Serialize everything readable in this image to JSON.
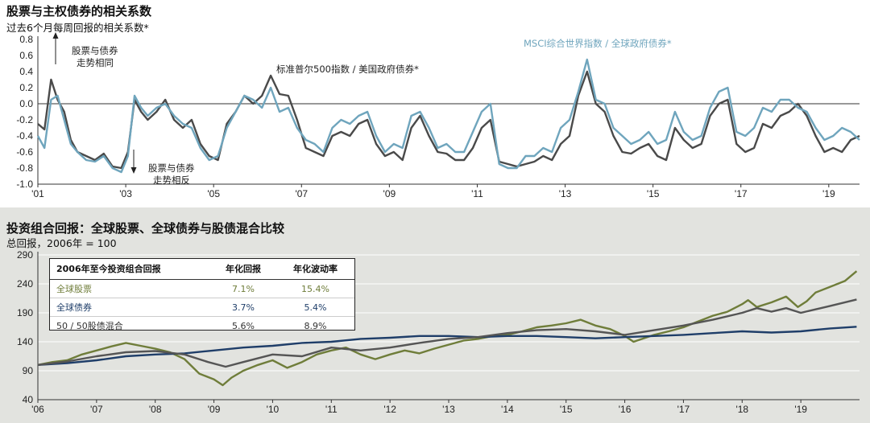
{
  "top": {
    "title": "股票与主权债券的相关系数",
    "subtitle": "过去6个月每周回报的相关系数*",
    "annotations": {
      "up_line1": "股票与债券",
      "up_line2": "走势相同",
      "down_line1": "股票与债券",
      "down_line2": "走势相反",
      "series1_label": "标准普尔500指数 / 美国政府债券*",
      "series2_label": "MSCI综合世界指数 / 全球政府债券*"
    }
  },
  "bottom": {
    "title": "投资组合回报：全球股票、全球债券与股债混合比较",
    "subtitle": "总回报，2006年 = 100",
    "table": {
      "headers": [
        "2006年至今投资组合回报",
        "年化回报",
        "年化波动率"
      ],
      "rows": [
        {
          "label": "全球股票",
          "return": "7.1%",
          "vol": "15.4%",
          "color": "#6f7d3a"
        },
        {
          "label": "全球债券",
          "return": "3.7%",
          "vol": "5.4%",
          "color": "#1f3e69"
        },
        {
          "label": "50 / 50股债混合",
          "return": "5.6%",
          "vol": "8.9%",
          "color": "#333333"
        }
      ]
    }
  },
  "chart_data": [
    {
      "type": "line",
      "title": "股票与主权债券的相关系数",
      "subtitle": "过去6个月每周回报的相关系数*",
      "ylim": [
        -1.0,
        0.8
      ],
      "xlim": [
        2001,
        2019.7
      ],
      "yticks": [
        -1.0,
        -0.8,
        -0.6,
        -0.4,
        -0.2,
        0.0,
        0.2,
        0.4,
        0.6,
        0.8
      ],
      "ytick_labels": [
        "-1.0",
        "-0.8",
        "-0.6",
        "-0.4",
        "-0.2",
        "0.0",
        "0.2",
        "0.4",
        "0.6",
        "0.8"
      ],
      "xticks": [
        2001,
        2003,
        2005,
        2007,
        2009,
        2011,
        2013,
        2015,
        2017,
        2019
      ],
      "xtick_labels": [
        "'01",
        "'03",
        "'05",
        "'07",
        "'09",
        "'11",
        "'13",
        "'15",
        "'17",
        "'19"
      ],
      "colors": [
        "#4a4a4a",
        "#6fa5bd"
      ],
      "series": [
        {
          "name": "标准普尔500指数 / 美国政府债券*",
          "x": [
            2001.0,
            2001.15,
            2001.3,
            2001.45,
            2001.6,
            2001.75,
            2001.9,
            2002.1,
            2002.3,
            2002.5,
            2002.7,
            2002.9,
            2003.05,
            2003.2,
            2003.35,
            2003.5,
            2003.7,
            2003.9,
            2004.1,
            2004.3,
            2004.5,
            2004.7,
            2004.9,
            2005.1,
            2005.3,
            2005.5,
            2005.7,
            2005.9,
            2006.1,
            2006.3,
            2006.5,
            2006.7,
            2006.9,
            2007.1,
            2007.3,
            2007.5,
            2007.7,
            2007.9,
            2008.1,
            2008.3,
            2008.5,
            2008.7,
            2008.9,
            2009.1,
            2009.3,
            2009.5,
            2009.7,
            2009.9,
            2010.1,
            2010.3,
            2010.5,
            2010.7,
            2010.9,
            2011.1,
            2011.3,
            2011.5,
            2011.7,
            2011.9,
            2012.1,
            2012.3,
            2012.5,
            2012.7,
            2012.9,
            2013.1,
            2013.3,
            2013.5,
            2013.7,
            2013.9,
            2014.1,
            2014.3,
            2014.5,
            2014.7,
            2014.9,
            2015.1,
            2015.3,
            2015.5,
            2015.7,
            2015.9,
            2016.1,
            2016.3,
            2016.5,
            2016.7,
            2016.9,
            2017.1,
            2017.3,
            2017.5,
            2017.7,
            2017.9,
            2018.1,
            2018.3,
            2018.5,
            2018.7,
            2018.9,
            2019.1,
            2019.3,
            2019.5,
            2019.7
          ],
          "y": [
            -0.25,
            -0.32,
            0.3,
            0.05,
            -0.1,
            -0.45,
            -0.6,
            -0.65,
            -0.7,
            -0.62,
            -0.78,
            -0.8,
            -0.6,
            0.05,
            -0.1,
            -0.2,
            -0.1,
            0.05,
            -0.2,
            -0.3,
            -0.2,
            -0.5,
            -0.65,
            -0.7,
            -0.25,
            -0.1,
            0.1,
            0.0,
            0.1,
            0.35,
            0.12,
            0.1,
            -0.2,
            -0.55,
            -0.6,
            -0.65,
            -0.4,
            -0.35,
            -0.4,
            -0.25,
            -0.2,
            -0.5,
            -0.65,
            -0.6,
            -0.7,
            -0.3,
            -0.15,
            -0.4,
            -0.6,
            -0.62,
            -0.7,
            -0.7,
            -0.55,
            -0.3,
            -0.2,
            -0.72,
            -0.75,
            -0.78,
            -0.75,
            -0.72,
            -0.65,
            -0.7,
            -0.5,
            -0.4,
            0.1,
            0.4,
            0.0,
            -0.1,
            -0.4,
            -0.6,
            -0.62,
            -0.55,
            -0.5,
            -0.65,
            -0.7,
            -0.3,
            -0.45,
            -0.55,
            -0.5,
            -0.15,
            0.0,
            0.05,
            -0.5,
            -0.6,
            -0.55,
            -0.25,
            -0.3,
            -0.15,
            -0.1,
            0.0,
            -0.15,
            -0.4,
            -0.6,
            -0.55,
            -0.6,
            -0.45,
            -0.4
          ]
        },
        {
          "name": "MSCI综合世界指数 / 全球政府债券*",
          "x": [
            2001.0,
            2001.15,
            2001.3,
            2001.45,
            2001.6,
            2001.75,
            2001.9,
            2002.1,
            2002.3,
            2002.5,
            2002.7,
            2002.9,
            2003.05,
            2003.2,
            2003.35,
            2003.5,
            2003.7,
            2003.9,
            2004.1,
            2004.3,
            2004.5,
            2004.7,
            2004.9,
            2005.1,
            2005.3,
            2005.5,
            2005.7,
            2005.9,
            2006.1,
            2006.3,
            2006.5,
            2006.7,
            2006.9,
            2007.1,
            2007.3,
            2007.5,
            2007.7,
            2007.9,
            2008.1,
            2008.3,
            2008.5,
            2008.7,
            2008.9,
            2009.1,
            2009.3,
            2009.5,
            2009.7,
            2009.9,
            2010.1,
            2010.3,
            2010.5,
            2010.7,
            2010.9,
            2011.1,
            2011.3,
            2011.5,
            2011.7,
            2011.9,
            2012.1,
            2012.3,
            2012.5,
            2012.7,
            2012.9,
            2013.1,
            2013.3,
            2013.5,
            2013.7,
            2013.9,
            2014.1,
            2014.3,
            2014.5,
            2014.7,
            2014.9,
            2015.1,
            2015.3,
            2015.5,
            2015.7,
            2015.9,
            2016.1,
            2016.3,
            2016.5,
            2016.7,
            2016.9,
            2017.1,
            2017.3,
            2017.5,
            2017.7,
            2017.9,
            2018.1,
            2018.3,
            2018.5,
            2018.7,
            2018.9,
            2019.1,
            2019.3,
            2019.5,
            2019.7
          ],
          "y": [
            -0.4,
            -0.55,
            0.05,
            0.1,
            -0.2,
            -0.5,
            -0.6,
            -0.7,
            -0.72,
            -0.65,
            -0.8,
            -0.85,
            -0.65,
            0.1,
            -0.05,
            -0.15,
            -0.05,
            0.0,
            -0.15,
            -0.25,
            -0.3,
            -0.55,
            -0.7,
            -0.65,
            -0.3,
            -0.1,
            0.1,
            0.05,
            -0.05,
            0.2,
            -0.1,
            -0.05,
            -0.3,
            -0.45,
            -0.5,
            -0.6,
            -0.3,
            -0.2,
            -0.25,
            -0.15,
            -0.1,
            -0.4,
            -0.6,
            -0.5,
            -0.55,
            -0.15,
            -0.1,
            -0.3,
            -0.55,
            -0.5,
            -0.6,
            -0.6,
            -0.35,
            -0.1,
            0.0,
            -0.75,
            -0.8,
            -0.8,
            -0.65,
            -0.65,
            -0.55,
            -0.6,
            -0.3,
            -0.2,
            0.15,
            0.55,
            0.05,
            0.0,
            -0.3,
            -0.4,
            -0.5,
            -0.45,
            -0.35,
            -0.5,
            -0.45,
            -0.1,
            -0.35,
            -0.45,
            -0.4,
            -0.05,
            0.15,
            0.2,
            -0.35,
            -0.4,
            -0.3,
            -0.05,
            -0.1,
            0.05,
            0.05,
            -0.05,
            -0.1,
            -0.3,
            -0.45,
            -0.4,
            -0.3,
            -0.35,
            -0.45
          ]
        }
      ]
    },
    {
      "type": "line",
      "title": "投资组合回报：全球股票、全球债券与股债混合比较",
      "subtitle": "总回报，2006年 = 100",
      "ylim": [
        40,
        290
      ],
      "xlim": [
        2006,
        2020
      ],
      "yticks": [
        40,
        90,
        140,
        190,
        240,
        290
      ],
      "ytick_labels": [
        "40",
        "90",
        "140",
        "190",
        "240",
        "290"
      ],
      "xticks": [
        2006,
        2007,
        2008,
        2009,
        2010,
        2011,
        2012,
        2013,
        2014,
        2015,
        2016,
        2017,
        2018,
        2019
      ],
      "xtick_labels": [
        "'06",
        "'07",
        "'08",
        "'09",
        "'10",
        "'11",
        "'12",
        "'13",
        "'14",
        "'15",
        "'16",
        "'17",
        "'18",
        "'19"
      ],
      "colors": [
        "#6f7d3a",
        "#1f3e69",
        "#555555"
      ],
      "series": [
        {
          "name": "全球股票",
          "x": [
            2006.0,
            2006.25,
            2006.5,
            2006.75,
            2007.0,
            2007.25,
            2007.5,
            2007.75,
            2008.0,
            2008.25,
            2008.5,
            2008.75,
            2009.0,
            2009.15,
            2009.3,
            2009.5,
            2009.75,
            2010.0,
            2010.25,
            2010.5,
            2010.75,
            2011.0,
            2011.25,
            2011.5,
            2011.75,
            2012.0,
            2012.25,
            2012.5,
            2012.75,
            2013.0,
            2013.25,
            2013.5,
            2013.75,
            2014.0,
            2014.25,
            2014.5,
            2014.75,
            2015.0,
            2015.25,
            2015.5,
            2015.75,
            2016.0,
            2016.15,
            2016.5,
            2016.75,
            2017.0,
            2017.25,
            2017.5,
            2017.75,
            2018.0,
            2018.1,
            2018.25,
            2018.5,
            2018.75,
            2018.95,
            2019.1,
            2019.25,
            2019.5,
            2019.75,
            2019.95
          ],
          "y": [
            100,
            105,
            108,
            118,
            125,
            132,
            138,
            133,
            128,
            122,
            110,
            85,
            75,
            65,
            78,
            90,
            100,
            108,
            95,
            105,
            118,
            125,
            130,
            118,
            110,
            118,
            125,
            120,
            128,
            135,
            142,
            145,
            150,
            152,
            158,
            165,
            168,
            172,
            178,
            168,
            162,
            150,
            140,
            152,
            158,
            165,
            175,
            185,
            192,
            205,
            212,
            200,
            208,
            218,
            200,
            210,
            225,
            235,
            245,
            262
          ]
        },
        {
          "name": "全球债券",
          "x": [
            2006.0,
            2006.5,
            2007.0,
            2007.5,
            2008.0,
            2008.5,
            2009.0,
            2009.5,
            2010.0,
            2010.5,
            2011.0,
            2011.5,
            2012.0,
            2012.5,
            2013.0,
            2013.5,
            2014.0,
            2014.5,
            2015.0,
            2015.5,
            2016.0,
            2016.5,
            2017.0,
            2017.5,
            2018.0,
            2018.5,
            2019.0,
            2019.5,
            2019.95
          ],
          "y": [
            100,
            103,
            108,
            115,
            118,
            120,
            125,
            130,
            133,
            138,
            140,
            145,
            147,
            150,
            150,
            148,
            150,
            150,
            148,
            146,
            148,
            150,
            152,
            155,
            158,
            156,
            158,
            163,
            166
          ]
        },
        {
          "name": "50 / 50股债混合",
          "x": [
            2006.0,
            2006.5,
            2007.0,
            2007.5,
            2008.0,
            2008.5,
            2008.9,
            2009.2,
            2009.5,
            2010.0,
            2010.5,
            2011.0,
            2011.5,
            2012.0,
            2012.5,
            2013.0,
            2013.5,
            2014.0,
            2014.5,
            2015.0,
            2015.5,
            2016.0,
            2016.5,
            2017.0,
            2017.5,
            2018.0,
            2018.25,
            2018.5,
            2018.75,
            2019.0,
            2019.25,
            2019.5,
            2019.95
          ],
          "y": [
            100,
            106,
            115,
            122,
            124,
            118,
            105,
            97,
            105,
            118,
            115,
            130,
            125,
            130,
            138,
            145,
            148,
            155,
            160,
            162,
            158,
            152,
            160,
            168,
            178,
            190,
            198,
            192,
            198,
            190,
            196,
            202,
            213
          ]
        }
      ]
    }
  ]
}
